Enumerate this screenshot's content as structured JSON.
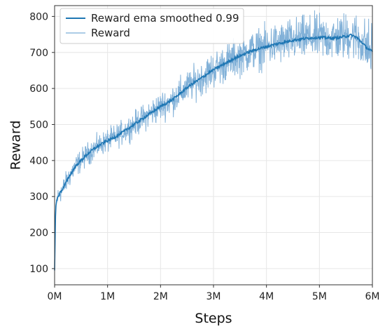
{
  "chart_data": {
    "type": "line",
    "title": "",
    "xlabel": "Steps",
    "ylabel": "Reward",
    "xlim": [
      0,
      6000000
    ],
    "ylim": [
      55,
      830
    ],
    "x_ticks": [
      {
        "value": 0,
        "label": "0M"
      },
      {
        "value": 1000000,
        "label": "1M"
      },
      {
        "value": 2000000,
        "label": "2M"
      },
      {
        "value": 3000000,
        "label": "3M"
      },
      {
        "value": 4000000,
        "label": "4M"
      },
      {
        "value": 5000000,
        "label": "5M"
      },
      {
        "value": 6000000,
        "label": "6M"
      }
    ],
    "y_ticks": [
      {
        "value": 100,
        "label": "100"
      },
      {
        "value": 200,
        "label": "200"
      },
      {
        "value": 300,
        "label": "300"
      },
      {
        "value": 400,
        "label": "400"
      },
      {
        "value": 500,
        "label": "500"
      },
      {
        "value": 600,
        "label": "600"
      },
      {
        "value": 700,
        "label": "700"
      },
      {
        "value": 800,
        "label": "800"
      }
    ],
    "grid": true,
    "legend_position": "top-left",
    "series": [
      {
        "name": "Reward ema smoothed 0.99",
        "color": "#1f77b4",
        "x": [
          0,
          20000,
          50000,
          100000,
          150000,
          200000,
          300000,
          400000,
          500000,
          600000,
          700000,
          800000,
          900000,
          1000000,
          1100000,
          1200000,
          1300000,
          1400000,
          1500000,
          1600000,
          1700000,
          1800000,
          1900000,
          2000000,
          2100000,
          2200000,
          2300000,
          2400000,
          2500000,
          2600000,
          2700000,
          2800000,
          2900000,
          3000000,
          3100000,
          3200000,
          3300000,
          3400000,
          3500000,
          3600000,
          3700000,
          3800000,
          3900000,
          4000000,
          4100000,
          4200000,
          4300000,
          4400000,
          4500000,
          4600000,
          4700000,
          4800000,
          4900000,
          5000000,
          5100000,
          5200000,
          5300000,
          5400000,
          5500000,
          5600000,
          5700000,
          5800000,
          5900000,
          6000000
        ],
        "y": [
          95,
          270,
          295,
          310,
          320,
          335,
          362,
          385,
          400,
          415,
          428,
          438,
          447,
          455,
          462,
          470,
          480,
          490,
          500,
          510,
          520,
          530,
          540,
          550,
          558,
          566,
          578,
          590,
          602,
          613,
          622,
          632,
          642,
          652,
          660,
          668,
          676,
          684,
          690,
          697,
          703,
          708,
          712,
          716,
          720,
          724,
          727,
          730,
          734,
          736,
          738,
          740,
          741,
          742,
          741,
          740,
          740,
          742,
          745,
          748,
          742,
          728,
          712,
          702
        ]
      },
      {
        "name": "Reward",
        "color": "#7badd6",
        "x": [
          0,
          20000,
          50000,
          100000,
          150000,
          200000,
          300000,
          400000,
          500000,
          600000,
          700000,
          800000,
          900000,
          1000000,
          1100000,
          1200000,
          1300000,
          1400000,
          1500000,
          1600000,
          1700000,
          1800000,
          1900000,
          2000000,
          2100000,
          2200000,
          2300000,
          2400000,
          2500000,
          2600000,
          2700000,
          2800000,
          2900000,
          3000000,
          3100000,
          3200000,
          3300000,
          3400000,
          3500000,
          3600000,
          3700000,
          3800000,
          3900000,
          4000000,
          4100000,
          4200000,
          4300000,
          4400000,
          4500000,
          4600000,
          4700000,
          4800000,
          4900000,
          5000000,
          5100000,
          5200000,
          5300000,
          5400000,
          5500000,
          5600000,
          5700000,
          5800000,
          5900000,
          6000000
        ],
        "y": [
          95,
          270,
          295,
          310,
          320,
          335,
          362,
          385,
          400,
          415,
          428,
          438,
          447,
          455,
          462,
          470,
          480,
          490,
          500,
          510,
          520,
          530,
          540,
          550,
          558,
          566,
          578,
          590,
          602,
          613,
          622,
          632,
          642,
          652,
          660,
          668,
          676,
          684,
          690,
          697,
          703,
          708,
          712,
          716,
          720,
          724,
          727,
          730,
          734,
          736,
          738,
          740,
          741,
          742,
          741,
          740,
          740,
          742,
          745,
          748,
          742,
          728,
          712,
          702
        ],
        "spread": [
          0,
          15,
          18,
          20,
          20,
          20,
          22,
          22,
          22,
          22,
          22,
          22,
          22,
          23,
          23,
          23,
          24,
          24,
          25,
          25,
          26,
          27,
          28,
          28,
          29,
          30,
          30,
          31,
          32,
          32,
          33,
          34,
          35,
          35,
          36,
          36,
          37,
          37,
          38,
          38,
          39,
          39,
          40,
          40,
          40,
          41,
          41,
          42,
          42,
          42,
          43,
          43,
          43,
          44,
          44,
          44,
          45,
          45,
          46,
          46,
          47,
          50,
          55,
          60
        ]
      }
    ]
  }
}
